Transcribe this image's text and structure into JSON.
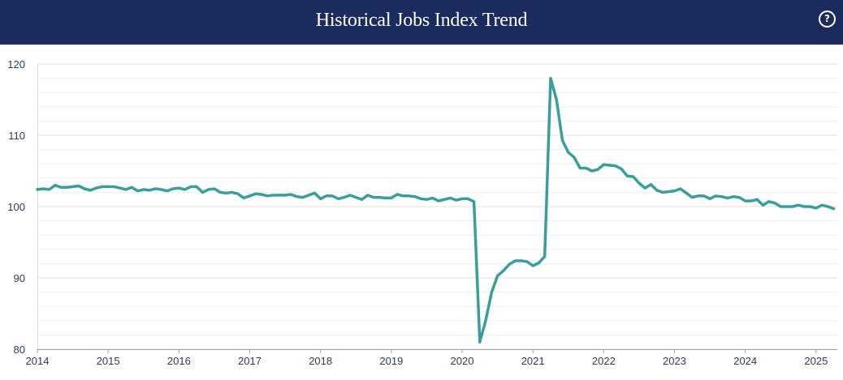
{
  "header": {
    "title": "Historical Jobs Index Trend",
    "help_icon": "question-circle-icon",
    "help_glyph": "?"
  },
  "colors": {
    "header_bg": "#1b2b5e",
    "line": "#3a9e9a",
    "major_grid": "#eadfcf",
    "minor_grid": "#eeeeee",
    "axis_text": "#2b3a5e"
  },
  "chart_data": {
    "type": "line",
    "title": "",
    "xlabel": "",
    "ylabel": "",
    "ylim": [
      80,
      120
    ],
    "xlim": [
      2014.0,
      2025.3
    ],
    "yticks": [
      80,
      90,
      100,
      110,
      120
    ],
    "xticks": [
      "2014",
      "2015",
      "2016",
      "2017",
      "2018",
      "2019",
      "2020",
      "2021",
      "2022",
      "2023",
      "2024",
      "2025"
    ],
    "grid": true,
    "legend": "none",
    "series": [
      {
        "name": "",
        "x": [
          2014.0,
          2014.083,
          2014.167,
          2014.25,
          2014.333,
          2014.417,
          2014.5,
          2014.583,
          2014.667,
          2014.75,
          2014.833,
          2014.917,
          2015.0,
          2015.083,
          2015.167,
          2015.25,
          2015.333,
          2015.417,
          2015.5,
          2015.583,
          2015.667,
          2015.75,
          2015.833,
          2015.917,
          2016.0,
          2016.083,
          2016.167,
          2016.25,
          2016.333,
          2016.417,
          2016.5,
          2016.583,
          2016.667,
          2016.75,
          2016.833,
          2016.917,
          2017.0,
          2017.083,
          2017.167,
          2017.25,
          2017.333,
          2017.417,
          2017.5,
          2017.583,
          2017.667,
          2017.75,
          2017.833,
          2017.917,
          2018.0,
          2018.083,
          2018.167,
          2018.25,
          2018.333,
          2018.417,
          2018.5,
          2018.583,
          2018.667,
          2018.75,
          2018.833,
          2018.917,
          2019.0,
          2019.083,
          2019.167,
          2019.25,
          2019.333,
          2019.417,
          2019.5,
          2019.583,
          2019.667,
          2019.75,
          2019.833,
          2019.917,
          2020.0,
          2020.083,
          2020.167,
          2020.25,
          2020.333,
          2020.417,
          2020.5,
          2020.583,
          2020.667,
          2020.75,
          2020.833,
          2020.917,
          2021.0,
          2021.083,
          2021.167,
          2021.25,
          2021.333,
          2021.417,
          2021.5,
          2021.583,
          2021.667,
          2021.75,
          2021.833,
          2021.917,
          2022.0,
          2022.083,
          2022.167,
          2022.25,
          2022.333,
          2022.417,
          2022.5,
          2022.583,
          2022.667,
          2022.75,
          2022.833,
          2022.917,
          2023.0,
          2023.083,
          2023.167,
          2023.25,
          2023.333,
          2023.417,
          2023.5,
          2023.583,
          2023.667,
          2023.75,
          2023.833,
          2023.917,
          2024.0,
          2024.083,
          2024.167,
          2024.25,
          2024.333,
          2024.417,
          2024.5,
          2024.583,
          2024.667,
          2024.75,
          2024.833,
          2024.917,
          2025.0,
          2025.083,
          2025.167,
          2025.25
        ],
        "values": [
          102.4,
          102.5,
          102.4,
          103.0,
          102.7,
          102.7,
          102.8,
          102.9,
          102.5,
          102.3,
          102.6,
          102.8,
          102.8,
          102.8,
          102.6,
          102.4,
          102.7,
          102.2,
          102.4,
          102.3,
          102.5,
          102.4,
          102.2,
          102.5,
          102.6,
          102.4,
          102.8,
          102.8,
          102.0,
          102.4,
          102.5,
          102.0,
          101.9,
          102.0,
          101.8,
          101.2,
          101.5,
          101.8,
          101.7,
          101.5,
          101.6,
          101.6,
          101.6,
          101.7,
          101.4,
          101.3,
          101.6,
          101.9,
          101.1,
          101.5,
          101.5,
          101.1,
          101.3,
          101.6,
          101.3,
          101.0,
          101.6,
          101.3,
          101.3,
          101.2,
          101.2,
          101.7,
          101.5,
          101.5,
          101.4,
          101.1,
          101.0,
          101.2,
          100.8,
          101.0,
          101.2,
          100.9,
          101.1,
          101.1,
          100.7,
          81.0,
          84.0,
          88.0,
          90.3,
          91.0,
          91.9,
          92.4,
          92.4,
          92.3,
          91.7,
          92.1,
          93.0,
          118.0,
          115.0,
          109.3,
          107.6,
          106.9,
          105.4,
          105.4,
          105.0,
          105.2,
          105.9,
          105.8,
          105.7,
          105.3,
          104.3,
          104.2,
          103.3,
          102.6,
          103.1,
          102.3,
          102.0,
          102.1,
          102.2,
          102.5,
          101.9,
          101.3,
          101.5,
          101.5,
          101.1,
          101.5,
          101.4,
          101.2,
          101.4,
          101.3,
          100.8,
          100.8,
          101.0,
          100.2,
          100.7,
          100.5,
          100.0,
          100.0,
          100.0,
          100.2,
          100.0,
          100.0,
          99.8,
          100.2,
          100.0,
          99.7
        ]
      }
    ]
  }
}
